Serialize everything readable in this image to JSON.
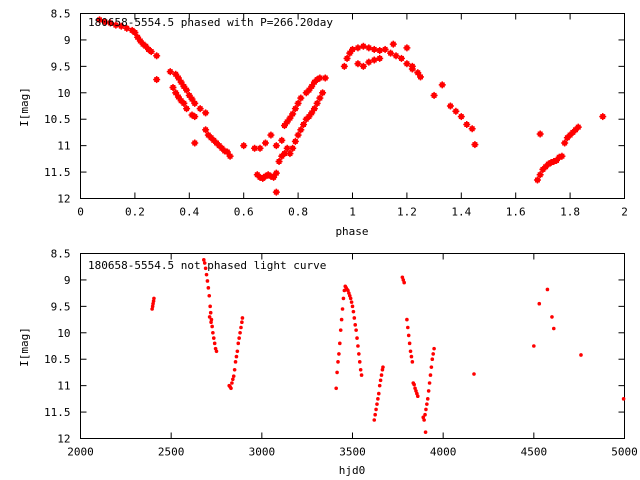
{
  "chart_data": [
    {
      "type": "scatter",
      "title": "180658-5554.5 phased with P=266.20day",
      "xlabel": "phase",
      "ylabel": "I[mag]",
      "xlim": [
        0,
        2
      ],
      "ylim": [
        12,
        8.5
      ],
      "y_inverted": true,
      "grid": false,
      "x_ticks": [
        "0",
        "0.2",
        "0.4",
        "0.6",
        "0.8",
        "1",
        "1.2",
        "1.4",
        "1.6",
        "1.8",
        "2"
      ],
      "y_ticks": [
        "8.5",
        "9",
        "9.5",
        "10",
        "10.5",
        "11",
        "11.5",
        "12"
      ],
      "marker_color": "#ff0000",
      "points": [
        [
          0.07,
          8.62
        ],
        [
          0.09,
          8.66
        ],
        [
          0.11,
          8.68
        ],
        [
          0.13,
          8.72
        ],
        [
          0.15,
          8.74
        ],
        [
          0.17,
          8.78
        ],
        [
          0.19,
          8.82
        ],
        [
          0.2,
          8.86
        ],
        [
          0.21,
          8.95
        ],
        [
          0.22,
          9.02
        ],
        [
          0.23,
          9.08
        ],
        [
          0.24,
          9.12
        ],
        [
          0.25,
          9.18
        ],
        [
          0.26,
          9.22
        ],
        [
          0.28,
          9.3
        ],
        [
          0.28,
          9.75
        ],
        [
          0.33,
          9.6
        ],
        [
          0.35,
          9.65
        ],
        [
          0.36,
          9.72
        ],
        [
          0.37,
          9.8
        ],
        [
          0.38,
          9.88
        ],
        [
          0.39,
          9.95
        ],
        [
          0.4,
          10.05
        ],
        [
          0.41,
          10.12
        ],
        [
          0.42,
          10.2
        ],
        [
          0.44,
          10.3
        ],
        [
          0.46,
          10.38
        ],
        [
          0.34,
          9.9
        ],
        [
          0.35,
          10.0
        ],
        [
          0.36,
          10.08
        ],
        [
          0.37,
          10.15
        ],
        [
          0.38,
          10.2
        ],
        [
          0.39,
          10.3
        ],
        [
          0.41,
          10.42
        ],
        [
          0.42,
          10.45
        ],
        [
          0.42,
          10.95
        ],
        [
          0.46,
          10.7
        ],
        [
          0.47,
          10.8
        ],
        [
          0.48,
          10.85
        ],
        [
          0.49,
          10.9
        ],
        [
          0.5,
          10.95
        ],
        [
          0.51,
          11.0
        ],
        [
          0.52,
          11.05
        ],
        [
          0.53,
          11.1
        ],
        [
          0.54,
          11.12
        ],
        [
          0.55,
          11.2
        ],
        [
          0.6,
          11.0
        ],
        [
          0.64,
          11.05
        ],
        [
          0.66,
          11.05
        ],
        [
          0.68,
          10.95
        ],
        [
          0.7,
          10.8
        ],
        [
          0.72,
          11.0
        ],
        [
          0.74,
          10.9
        ],
        [
          0.65,
          11.55
        ],
        [
          0.66,
          11.6
        ],
        [
          0.67,
          11.62
        ],
        [
          0.68,
          11.58
        ],
        [
          0.69,
          11.55
        ],
        [
          0.7,
          11.58
        ],
        [
          0.71,
          11.6
        ],
        [
          0.72,
          11.52
        ],
        [
          0.72,
          11.88
        ],
        [
          0.73,
          11.3
        ],
        [
          0.74,
          11.2
        ],
        [
          0.75,
          11.15
        ],
        [
          0.76,
          11.05
        ],
        [
          0.75,
          10.62
        ],
        [
          0.76,
          10.55
        ],
        [
          0.77,
          10.48
        ],
        [
          0.78,
          10.4
        ],
        [
          0.79,
          10.3
        ],
        [
          0.8,
          10.2
        ],
        [
          0.81,
          10.1
        ],
        [
          0.77,
          11.15
        ],
        [
          0.78,
          11.05
        ],
        [
          0.79,
          10.92
        ],
        [
          0.8,
          10.8
        ],
        [
          0.81,
          10.7
        ],
        [
          0.82,
          10.6
        ],
        [
          0.83,
          10.5
        ],
        [
          0.84,
          10.45
        ],
        [
          0.85,
          10.38
        ],
        [
          0.86,
          10.3
        ],
        [
          0.87,
          10.2
        ],
        [
          0.88,
          10.1
        ],
        [
          0.89,
          10.0
        ],
        [
          0.83,
          10.0
        ],
        [
          0.84,
          9.95
        ],
        [
          0.85,
          9.88
        ],
        [
          0.86,
          9.8
        ],
        [
          0.87,
          9.75
        ],
        [
          0.88,
          9.72
        ],
        [
          0.9,
          9.72
        ],
        [
          0.97,
          9.5
        ],
        [
          0.98,
          9.35
        ],
        [
          0.99,
          9.25
        ],
        [
          1.0,
          9.18
        ],
        [
          1.02,
          9.15
        ],
        [
          1.04,
          9.12
        ],
        [
          1.06,
          9.15
        ],
        [
          1.08,
          9.18
        ],
        [
          1.1,
          9.2
        ],
        [
          1.12,
          9.18
        ],
        [
          1.14,
          9.25
        ],
        [
          1.16,
          9.3
        ],
        [
          1.18,
          9.35
        ],
        [
          1.2,
          9.45
        ],
        [
          1.22,
          9.55
        ],
        [
          1.24,
          9.62
        ],
        [
          1.25,
          9.7
        ],
        [
          1.02,
          9.45
        ],
        [
          1.04,
          9.5
        ],
        [
          1.06,
          9.42
        ],
        [
          1.08,
          9.38
        ],
        [
          1.1,
          9.35
        ],
        [
          1.15,
          9.08
        ],
        [
          1.2,
          9.15
        ],
        [
          1.22,
          9.5
        ],
        [
          1.3,
          10.05
        ],
        [
          1.33,
          9.85
        ],
        [
          1.36,
          10.25
        ],
        [
          1.38,
          10.35
        ],
        [
          1.4,
          10.45
        ],
        [
          1.42,
          10.6
        ],
        [
          1.44,
          10.68
        ],
        [
          1.45,
          10.98
        ],
        [
          1.68,
          11.65
        ],
        [
          1.69,
          11.55
        ],
        [
          1.7,
          11.45
        ],
        [
          1.71,
          11.4
        ],
        [
          1.72,
          11.35
        ],
        [
          1.73,
          11.32
        ],
        [
          1.74,
          11.3
        ],
        [
          1.75,
          11.28
        ],
        [
          1.76,
          11.22
        ],
        [
          1.77,
          11.2
        ],
        [
          1.69,
          10.78
        ],
        [
          1.78,
          10.95
        ],
        [
          1.79,
          10.85
        ],
        [
          1.8,
          10.8
        ],
        [
          1.81,
          10.75
        ],
        [
          1.82,
          10.7
        ],
        [
          1.83,
          10.65
        ],
        [
          1.92,
          10.45
        ]
      ]
    },
    {
      "type": "scatter",
      "title": "180658-5554.5 not phased light curve",
      "xlabel": "hjd0",
      "ylabel": "I[mag]",
      "xlim": [
        2000,
        5000
      ],
      "ylim": [
        12,
        8.5
      ],
      "y_inverted": true,
      "grid": false,
      "x_ticks": [
        "2000",
        "2500",
        "3000",
        "3500",
        "4000",
        "4500",
        "5000"
      ],
      "y_ticks": [
        "8.5",
        "9",
        "9.5",
        "10",
        "10.5",
        "11",
        "11.5",
        "12"
      ],
      "marker_color": "#ff0000",
      "points": [
        [
          2395,
          9.55
        ],
        [
          2398,
          9.5
        ],
        [
          2400,
          9.45
        ],
        [
          2403,
          9.4
        ],
        [
          2405,
          9.35
        ],
        [
          2680,
          8.62
        ],
        [
          2685,
          8.68
        ],
        [
          2690,
          8.78
        ],
        [
          2695,
          8.9
        ],
        [
          2700,
          9.02
        ],
        [
          2705,
          9.15
        ],
        [
          2710,
          9.3
        ],
        [
          2715,
          9.5
        ],
        [
          2718,
          9.62
        ],
        [
          2722,
          9.75
        ],
        [
          2726,
          9.88
        ],
        [
          2730,
          10.0
        ],
        [
          2735,
          10.1
        ],
        [
          2740,
          10.2
        ],
        [
          2745,
          10.3
        ],
        [
          2750,
          10.35
        ],
        [
          2712,
          9.7
        ],
        [
          2720,
          9.8
        ],
        [
          2820,
          11.0
        ],
        [
          2825,
          11.02
        ],
        [
          2830,
          11.05
        ],
        [
          2835,
          10.95
        ],
        [
          2840,
          10.88
        ],
        [
          2845,
          10.82
        ],
        [
          2850,
          10.7
        ],
        [
          2855,
          10.55
        ],
        [
          2860,
          10.45
        ],
        [
          2865,
          10.35
        ],
        [
          2870,
          10.2
        ],
        [
          2875,
          10.1
        ],
        [
          2880,
          10.0
        ],
        [
          2885,
          9.9
        ],
        [
          2890,
          9.8
        ],
        [
          2893,
          9.72
        ],
        [
          3410,
          11.05
        ],
        [
          3415,
          10.75
        ],
        [
          3420,
          10.55
        ],
        [
          3425,
          10.4
        ],
        [
          3430,
          10.2
        ],
        [
          3435,
          9.95
        ],
        [
          3440,
          9.75
        ],
        [
          3445,
          9.55
        ],
        [
          3450,
          9.35
        ],
        [
          3455,
          9.2
        ],
        [
          3460,
          9.12
        ],
        [
          3465,
          9.15
        ],
        [
          3470,
          9.18
        ],
        [
          3475,
          9.2
        ],
        [
          3480,
          9.25
        ],
        [
          3485,
          9.3
        ],
        [
          3490,
          9.35
        ],
        [
          3495,
          9.42
        ],
        [
          3500,
          9.5
        ],
        [
          3505,
          9.6
        ],
        [
          3510,
          9.72
        ],
        [
          3515,
          9.85
        ],
        [
          3520,
          9.95
        ],
        [
          3525,
          10.1
        ],
        [
          3530,
          10.25
        ],
        [
          3535,
          10.4
        ],
        [
          3540,
          10.55
        ],
        [
          3545,
          10.7
        ],
        [
          3550,
          10.8
        ],
        [
          3620,
          11.65
        ],
        [
          3625,
          11.55
        ],
        [
          3630,
          11.45
        ],
        [
          3635,
          11.35
        ],
        [
          3640,
          11.25
        ],
        [
          3645,
          11.15
        ],
        [
          3650,
          11.0
        ],
        [
          3655,
          10.9
        ],
        [
          3660,
          10.8
        ],
        [
          3665,
          10.7
        ],
        [
          3668,
          10.65
        ],
        [
          3775,
          8.95
        ],
        [
          3780,
          9.0
        ],
        [
          3785,
          9.05
        ],
        [
          3800,
          9.75
        ],
        [
          3805,
          9.9
        ],
        [
          3810,
          10.05
        ],
        [
          3815,
          10.2
        ],
        [
          3820,
          10.35
        ],
        [
          3825,
          10.45
        ],
        [
          3830,
          10.55
        ],
        [
          3835,
          10.95
        ],
        [
          3840,
          10.98
        ],
        [
          3845,
          11.05
        ],
        [
          3850,
          11.1
        ],
        [
          3855,
          11.15
        ],
        [
          3860,
          11.2
        ],
        [
          3890,
          11.6
        ],
        [
          3895,
          11.65
        ],
        [
          3900,
          11.55
        ],
        [
          3903,
          11.88
        ],
        [
          3905,
          11.45
        ],
        [
          3910,
          11.35
        ],
        [
          3915,
          11.25
        ],
        [
          3920,
          11.1
        ],
        [
          3925,
          10.95
        ],
        [
          3930,
          10.8
        ],
        [
          3935,
          10.65
        ],
        [
          3940,
          10.5
        ],
        [
          3945,
          10.4
        ],
        [
          3950,
          10.3
        ],
        [
          4170,
          10.78
        ],
        [
          4500,
          10.25
        ],
        [
          4530,
          9.45
        ],
        [
          4575,
          9.18
        ],
        [
          4600,
          9.7
        ],
        [
          4610,
          9.92
        ],
        [
          4760,
          10.42
        ],
        [
          4995,
          11.25
        ]
      ]
    }
  ]
}
